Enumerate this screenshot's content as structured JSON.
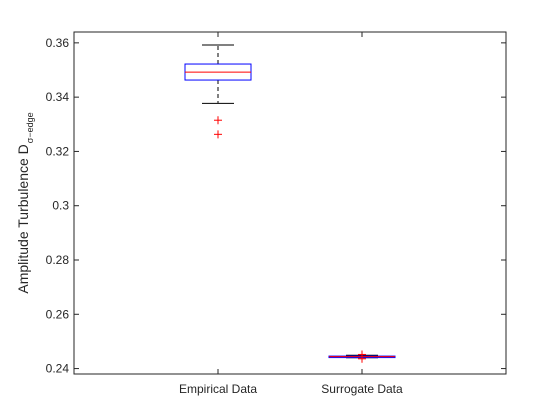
{
  "chart_data": {
    "type": "box",
    "title": "",
    "xlabel": "",
    "ylabel": "Amplitude Turbulence D",
    "ylabel_subscript": "σ−edge",
    "categories": [
      "Empirical Data",
      "Surrogate Data"
    ],
    "ylim": [
      0.238,
      0.364
    ],
    "yticks": [
      0.24,
      0.26,
      0.28,
      0.3,
      0.32,
      0.34,
      0.36
    ],
    "ytick_labels": [
      "0.24",
      "0.26",
      "0.28",
      "0.3",
      "0.32",
      "0.34",
      "0.36"
    ],
    "grid": false,
    "legend": "none",
    "boxes": [
      {
        "category": "Empirical Data",
        "whisker_low": 0.3377,
        "q1": 0.3463,
        "median": 0.3492,
        "q3": 0.3522,
        "whisker_high": 0.3592,
        "outliers": [
          0.3315,
          0.3263
        ]
      },
      {
        "category": "Surrogate Data",
        "whisker_low": 0.244,
        "q1": 0.2442,
        "median": 0.2444,
        "q3": 0.2446,
        "whisker_high": 0.2449,
        "outliers": [
          0.2452,
          0.2436
        ]
      }
    ],
    "colors": {
      "box": "#0000ff",
      "median": "#ff0000",
      "whisker": "#000000",
      "outlier": "#ff0000",
      "axis": "#262626"
    }
  }
}
